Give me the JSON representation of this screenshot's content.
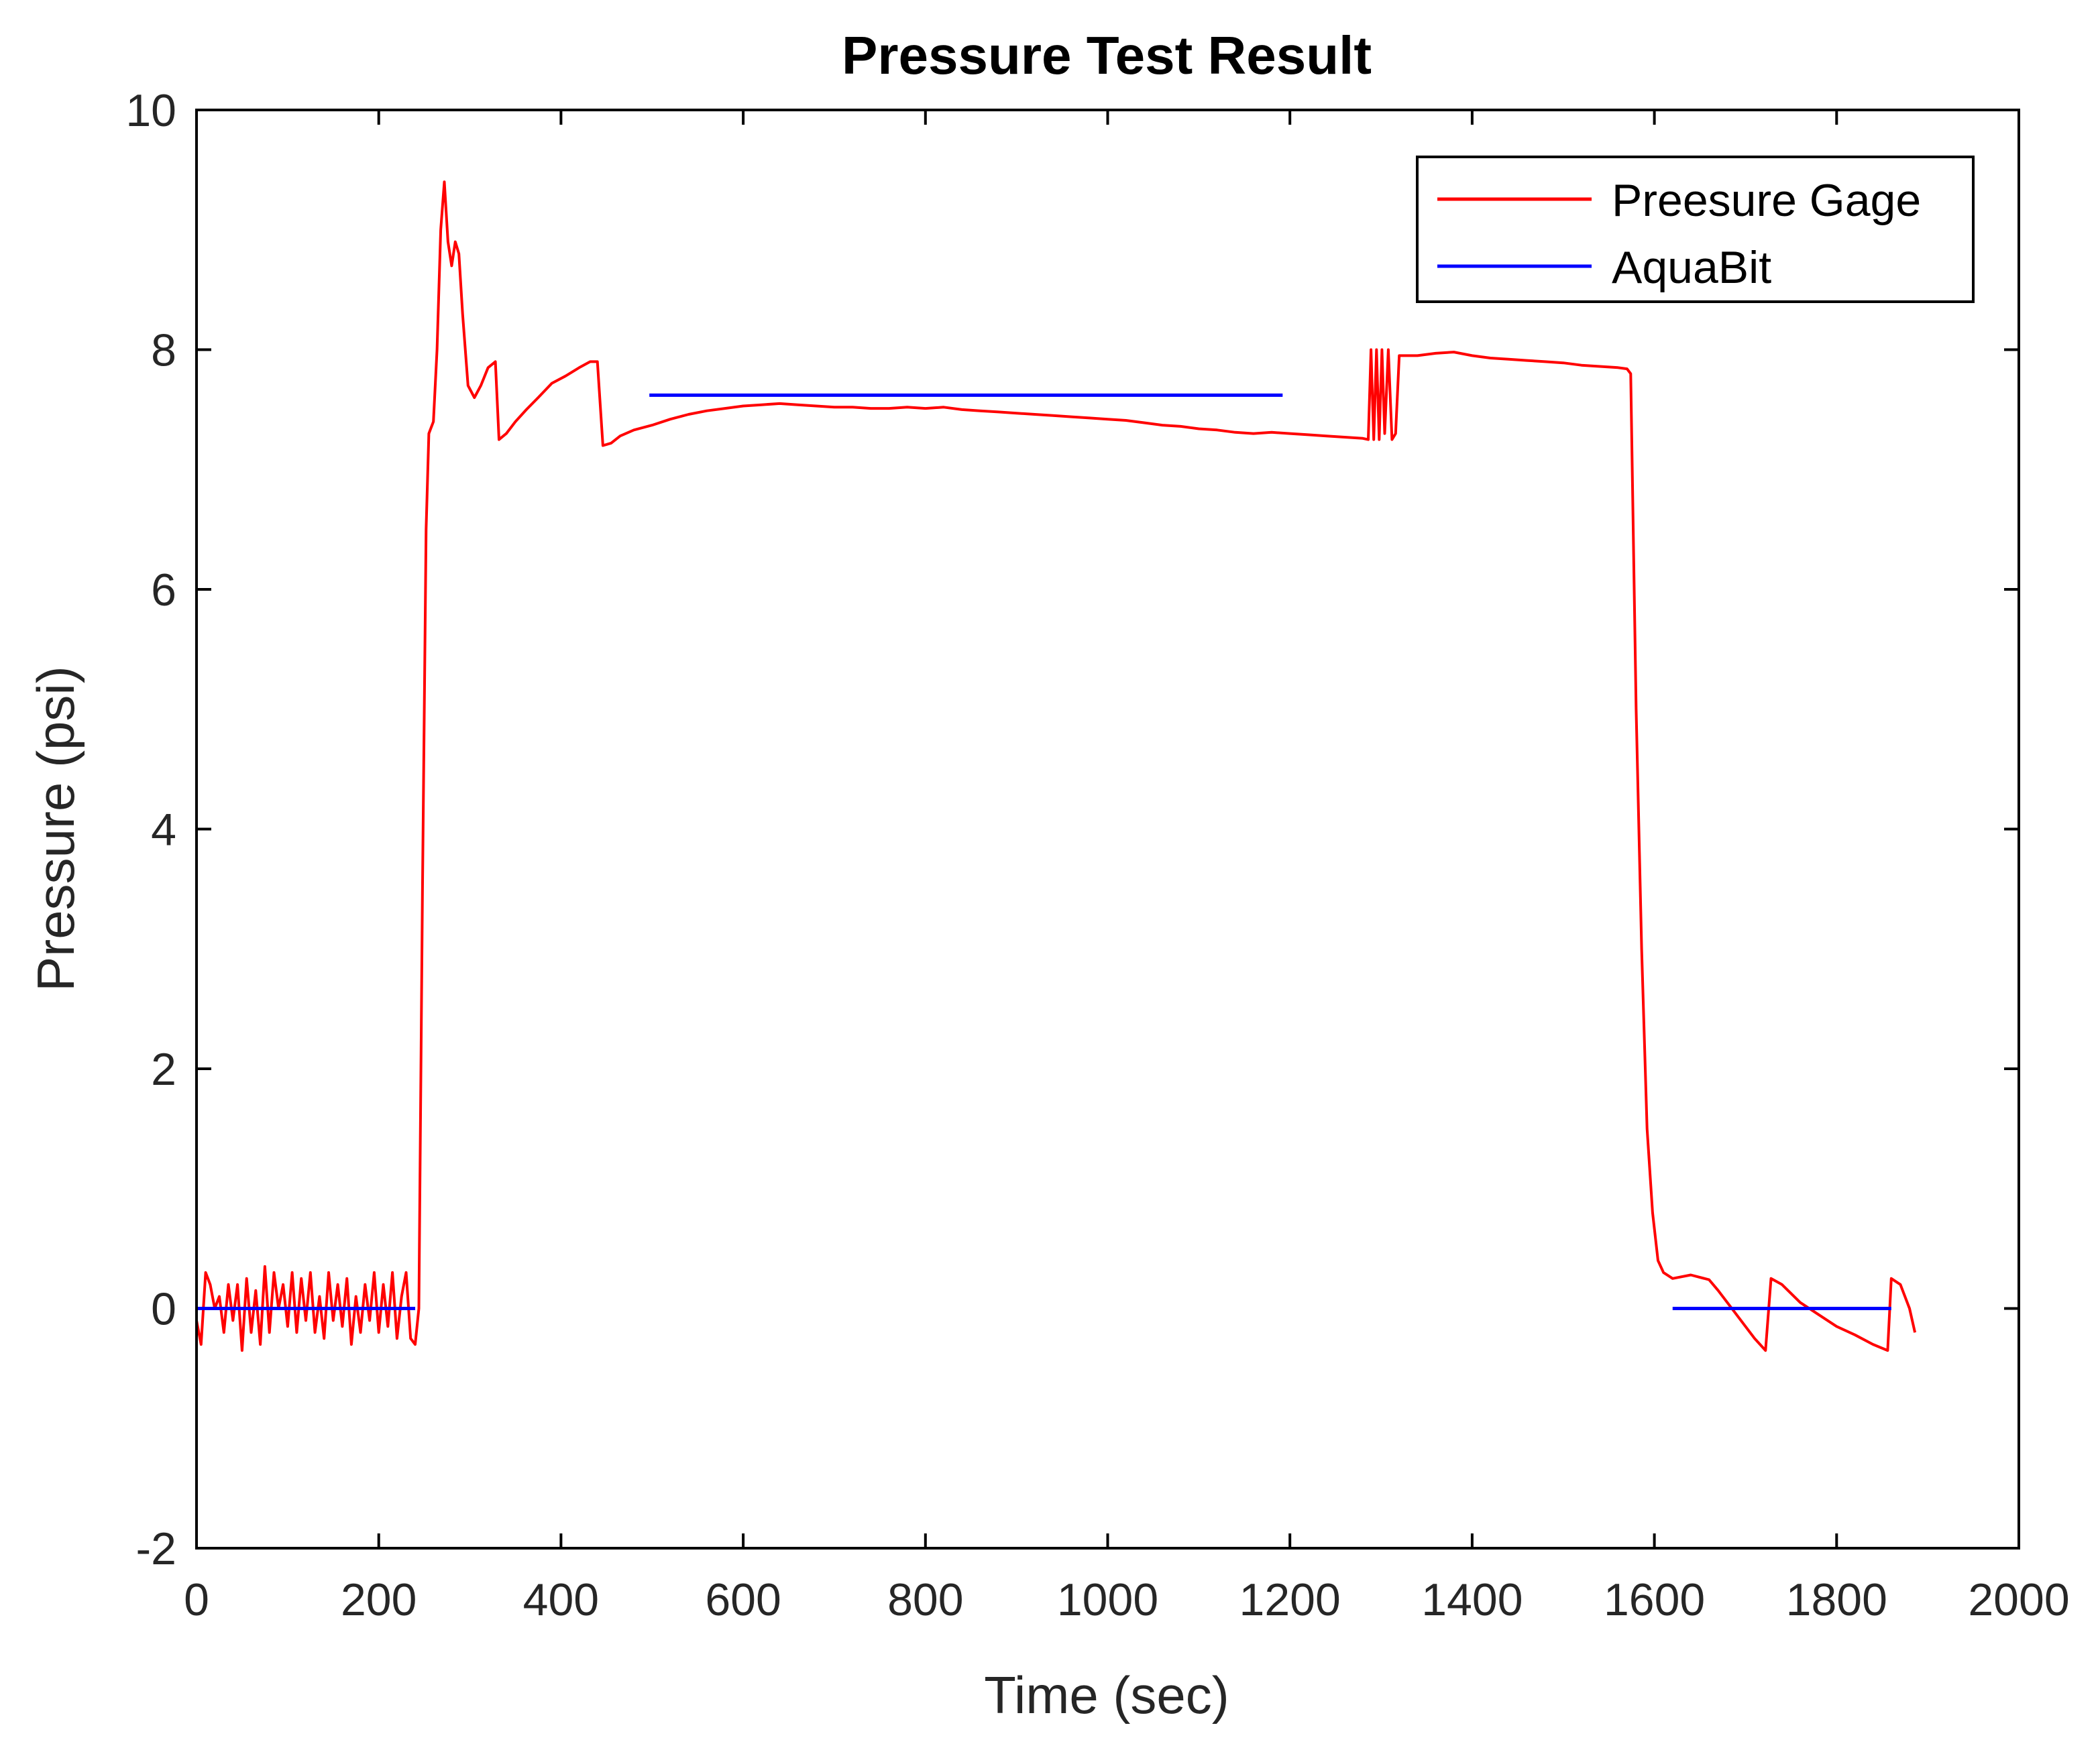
{
  "chart_data": {
    "type": "line",
    "title": "Pressure Test Result",
    "xlabel": "Time (sec)",
    "ylabel": "Pressure (psi)",
    "xlim": [
      0,
      2000
    ],
    "ylim": [
      -2,
      10
    ],
    "xticks": [
      0,
      200,
      400,
      600,
      800,
      1000,
      1200,
      1400,
      1600,
      1800,
      2000
    ],
    "yticks": [
      -2,
      0,
      2,
      4,
      6,
      8,
      10
    ],
    "grid": false,
    "legend_position": "top-right",
    "colors": {
      "gage": "#ff0000",
      "aquabit": "#0000ff",
      "axes": "#000000"
    },
    "series": [
      {
        "name": "Preesure Gage",
        "color": "#ff0000",
        "points": [
          [
            0,
            -0.1
          ],
          [
            5,
            -0.3
          ],
          [
            10,
            0.3
          ],
          [
            15,
            0.2
          ],
          [
            20,
            0.0
          ],
          [
            25,
            0.1
          ],
          [
            30,
            -0.2
          ],
          [
            35,
            0.2
          ],
          [
            40,
            -0.1
          ],
          [
            45,
            0.2
          ],
          [
            50,
            -0.35
          ],
          [
            55,
            0.25
          ],
          [
            60,
            -0.2
          ],
          [
            65,
            0.15
          ],
          [
            70,
            -0.3
          ],
          [
            75,
            0.35
          ],
          [
            80,
            -0.2
          ],
          [
            85,
            0.3
          ],
          [
            90,
            0.0
          ],
          [
            95,
            0.2
          ],
          [
            100,
            -0.15
          ],
          [
            105,
            0.3
          ],
          [
            110,
            -0.2
          ],
          [
            115,
            0.25
          ],
          [
            120,
            -0.1
          ],
          [
            125,
            0.3
          ],
          [
            130,
            -0.2
          ],
          [
            135,
            0.1
          ],
          [
            140,
            -0.25
          ],
          [
            145,
            0.3
          ],
          [
            150,
            -0.1
          ],
          [
            155,
            0.2
          ],
          [
            160,
            -0.15
          ],
          [
            165,
            0.25
          ],
          [
            170,
            -0.3
          ],
          [
            175,
            0.1
          ],
          [
            180,
            -0.2
          ],
          [
            185,
            0.2
          ],
          [
            190,
            -0.1
          ],
          [
            195,
            0.3
          ],
          [
            200,
            -0.2
          ],
          [
            205,
            0.2
          ],
          [
            210,
            -0.15
          ],
          [
            215,
            0.3
          ],
          [
            220,
            -0.25
          ],
          [
            225,
            0.1
          ],
          [
            230,
            0.3
          ],
          [
            235,
            -0.25
          ],
          [
            240,
            -0.3
          ],
          [
            244,
            0.0
          ],
          [
            248,
            3.5
          ],
          [
            252,
            6.5
          ],
          [
            255,
            7.3
          ],
          [
            260,
            7.4
          ],
          [
            264,
            8.0
          ],
          [
            268,
            9.0
          ],
          [
            272,
            9.4
          ],
          [
            276,
            8.9
          ],
          [
            280,
            8.7
          ],
          [
            284,
            8.9
          ],
          [
            288,
            8.8
          ],
          [
            292,
            8.3
          ],
          [
            298,
            7.7
          ],
          [
            305,
            7.6
          ],
          [
            312,
            7.7
          ],
          [
            320,
            7.85
          ],
          [
            328,
            7.9
          ],
          [
            332,
            7.25
          ],
          [
            340,
            7.3
          ],
          [
            350,
            7.4
          ],
          [
            362,
            7.5
          ],
          [
            375,
            7.6
          ],
          [
            390,
            7.72
          ],
          [
            405,
            7.78
          ],
          [
            420,
            7.85
          ],
          [
            432,
            7.9
          ],
          [
            440,
            7.9
          ],
          [
            446,
            7.2
          ],
          [
            455,
            7.22
          ],
          [
            465,
            7.28
          ],
          [
            480,
            7.33
          ],
          [
            500,
            7.37
          ],
          [
            520,
            7.42
          ],
          [
            540,
            7.46
          ],
          [
            560,
            7.49
          ],
          [
            580,
            7.51
          ],
          [
            600,
            7.53
          ],
          [
            620,
            7.54
          ],
          [
            640,
            7.55
          ],
          [
            660,
            7.54
          ],
          [
            680,
            7.53
          ],
          [
            700,
            7.52
          ],
          [
            720,
            7.52
          ],
          [
            740,
            7.51
          ],
          [
            760,
            7.51
          ],
          [
            780,
            7.52
          ],
          [
            800,
            7.51
          ],
          [
            820,
            7.52
          ],
          [
            840,
            7.5
          ],
          [
            860,
            7.49
          ],
          [
            880,
            7.48
          ],
          [
            900,
            7.47
          ],
          [
            920,
            7.46
          ],
          [
            940,
            7.45
          ],
          [
            960,
            7.44
          ],
          [
            980,
            7.43
          ],
          [
            1000,
            7.42
          ],
          [
            1020,
            7.41
          ],
          [
            1040,
            7.39
          ],
          [
            1060,
            7.37
          ],
          [
            1080,
            7.36
          ],
          [
            1100,
            7.34
          ],
          [
            1120,
            7.33
          ],
          [
            1140,
            7.31
          ],
          [
            1160,
            7.3
          ],
          [
            1180,
            7.31
          ],
          [
            1200,
            7.3
          ],
          [
            1220,
            7.29
          ],
          [
            1240,
            7.28
          ],
          [
            1260,
            7.27
          ],
          [
            1280,
            7.26
          ],
          [
            1286,
            7.25
          ],
          [
            1289,
            8.0
          ],
          [
            1292,
            7.25
          ],
          [
            1295,
            8.0
          ],
          [
            1298,
            7.25
          ],
          [
            1301,
            8.0
          ],
          [
            1304,
            7.3
          ],
          [
            1308,
            8.0
          ],
          [
            1312,
            7.25
          ],
          [
            1316,
            7.3
          ],
          [
            1320,
            7.95
          ],
          [
            1330,
            7.95
          ],
          [
            1340,
            7.95
          ],
          [
            1360,
            7.97
          ],
          [
            1380,
            7.98
          ],
          [
            1400,
            7.95
          ],
          [
            1420,
            7.93
          ],
          [
            1440,
            7.92
          ],
          [
            1460,
            7.91
          ],
          [
            1480,
            7.9
          ],
          [
            1500,
            7.89
          ],
          [
            1520,
            7.87
          ],
          [
            1540,
            7.86
          ],
          [
            1560,
            7.85
          ],
          [
            1570,
            7.84
          ],
          [
            1574,
            7.8
          ],
          [
            1580,
            5.0
          ],
          [
            1586,
            3.0
          ],
          [
            1592,
            1.5
          ],
          [
            1598,
            0.8
          ],
          [
            1604,
            0.4
          ],
          [
            1610,
            0.3
          ],
          [
            1620,
            0.25
          ],
          [
            1640,
            0.28
          ],
          [
            1660,
            0.24
          ],
          [
            1670,
            0.15
          ],
          [
            1690,
            -0.05
          ],
          [
            1710,
            -0.25
          ],
          [
            1722,
            -0.35
          ],
          [
            1728,
            0.25
          ],
          [
            1740,
            0.2
          ],
          [
            1760,
            0.05
          ],
          [
            1780,
            -0.05
          ],
          [
            1800,
            -0.15
          ],
          [
            1820,
            -0.22
          ],
          [
            1840,
            -0.3
          ],
          [
            1856,
            -0.35
          ],
          [
            1860,
            0.25
          ],
          [
            1870,
            0.2
          ],
          [
            1880,
            0.0
          ],
          [
            1886,
            -0.2
          ]
        ]
      },
      {
        "name": "AquaBit",
        "color": "#0000ff",
        "segments": [
          [
            [
              0,
              0.0
            ],
            [
              240,
              0.0
            ]
          ],
          [
            [
              497,
              7.62
            ],
            [
              1192,
              7.62
            ]
          ],
          [
            [
              1620,
              0.0
            ],
            [
              1860,
              0.0
            ]
          ]
        ]
      }
    ]
  }
}
